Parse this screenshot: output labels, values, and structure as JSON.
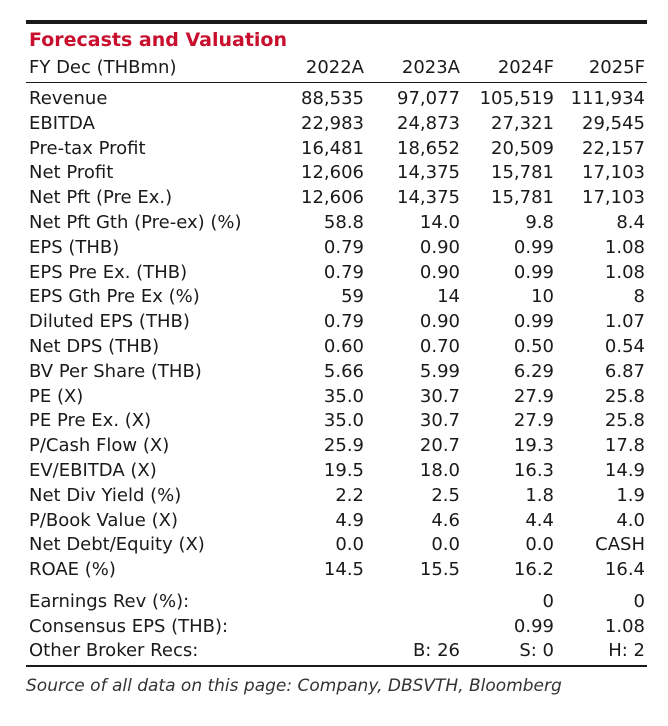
{
  "title": "Forecasts and Valuation",
  "header": {
    "label": "FY Dec (THBmn)",
    "years": [
      "2022A",
      "2023A",
      "2024F",
      "2025F"
    ]
  },
  "rows": [
    {
      "label": "Revenue",
      "values": [
        "88,535",
        "97,077",
        "105,519",
        "111,934"
      ]
    },
    {
      "label": "EBITDA",
      "values": [
        "22,983",
        "24,873",
        "27,321",
        "29,545"
      ]
    },
    {
      "label": "Pre-tax Profit",
      "values": [
        "16,481",
        "18,652",
        "20,509",
        "22,157"
      ]
    },
    {
      "label": "Net Profit",
      "values": [
        "12,606",
        "14,375",
        "15,781",
        "17,103"
      ]
    },
    {
      "label": "Net Pft (Pre Ex.)",
      "values": [
        "12,606",
        "14,375",
        "15,781",
        "17,103"
      ]
    },
    {
      "label": "Net Pft Gth (Pre-ex) (%)",
      "values": [
        "58.8",
        "14.0",
        "9.8",
        "8.4"
      ]
    },
    {
      "label": "EPS (THB)",
      "values": [
        "0.79",
        "0.90",
        "0.99",
        "1.08"
      ]
    },
    {
      "label": "EPS Pre Ex. (THB)",
      "values": [
        "0.79",
        "0.90",
        "0.99",
        "1.08"
      ]
    },
    {
      "label": "EPS Gth Pre Ex (%)",
      "values": [
        "59",
        "14",
        "10",
        "8"
      ]
    },
    {
      "label": "Diluted EPS (THB)",
      "values": [
        "0.79",
        "0.90",
        "0.99",
        "1.07"
      ]
    },
    {
      "label": "Net DPS (THB)",
      "values": [
        "0.60",
        "0.70",
        "0.50",
        "0.54"
      ]
    },
    {
      "label": "BV Per Share (THB)",
      "values": [
        "5.66",
        "5.99",
        "6.29",
        "6.87"
      ]
    },
    {
      "label": "PE (X)",
      "values": [
        "35.0",
        "30.7",
        "27.9",
        "25.8"
      ]
    },
    {
      "label": "PE Pre Ex. (X)",
      "values": [
        "35.0",
        "30.7",
        "27.9",
        "25.8"
      ]
    },
    {
      "label": "P/Cash Flow (X)",
      "values": [
        "25.9",
        "20.7",
        "19.3",
        "17.8"
      ]
    },
    {
      "label": "EV/EBITDA (X)",
      "values": [
        "19.5",
        "18.0",
        "16.3",
        "14.9"
      ]
    },
    {
      "label": "Net Div Yield (%)",
      "values": [
        "2.2",
        "2.5",
        "1.8",
        "1.9"
      ]
    },
    {
      "label": "P/Book Value (X)",
      "values": [
        "4.9",
        "4.6",
        "4.4",
        "4.0"
      ]
    },
    {
      "label": "Net Debt/Equity (X)",
      "values": [
        "0.0",
        "0.0",
        "0.0",
        "CASH"
      ]
    },
    {
      "label": "ROAE (%)",
      "values": [
        "14.5",
        "15.5",
        "16.2",
        "16.4"
      ]
    }
  ],
  "consensus": [
    {
      "label": "Earnings Rev (%):",
      "values": [
        "",
        "",
        "0",
        "0"
      ]
    },
    {
      "label": "Consensus EPS (THB):",
      "values": [
        "",
        "",
        "0.99",
        "1.08"
      ]
    },
    {
      "label": "Other Broker Recs:",
      "values": [
        "",
        "B: 26",
        "S: 0",
        "H: 2"
      ]
    }
  ],
  "source": "Source of all data on this page: Company, DBSVTH, Bloomberg",
  "colors": {
    "title": "#c8102e",
    "text": "#1a1a1a",
    "rule": "#1a1a1a"
  }
}
